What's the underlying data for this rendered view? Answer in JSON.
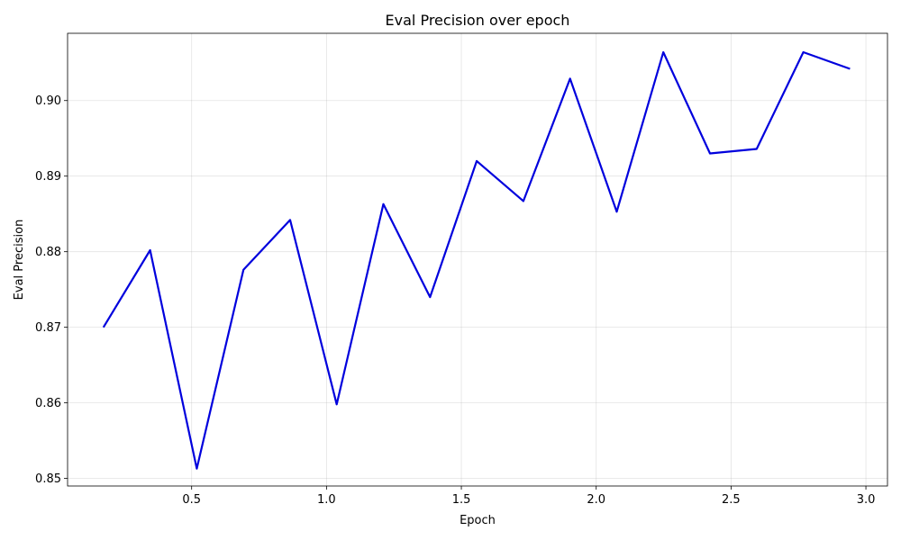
{
  "chart_data": {
    "type": "line",
    "title": "Eval Precision over epoch",
    "xlabel": "Epoch",
    "ylabel": "Eval Precision",
    "xlim": [
      0.04,
      3.08
    ],
    "ylim": [
      0.849,
      0.9089
    ],
    "xticks": [
      0.5,
      1.0,
      1.5,
      2.0,
      2.5,
      3.0
    ],
    "xtick_labels": [
      "0.5",
      "1.0",
      "1.5",
      "2.0",
      "2.5",
      "3.0"
    ],
    "yticks": [
      0.85,
      0.86,
      0.87,
      0.88,
      0.89,
      0.9
    ],
    "ytick_labels": [
      "0.85",
      "0.86",
      "0.87",
      "0.88",
      "0.89",
      "0.90"
    ],
    "grid": true,
    "series": [
      {
        "color": "#0000dd",
        "x": [
          0.173,
          0.346,
          0.519,
          0.692,
          0.865,
          1.038,
          1.211,
          1.384,
          1.557,
          1.73,
          1.903,
          2.076,
          2.249,
          2.422,
          2.595,
          2.768,
          2.941
        ],
        "y": [
          0.87,
          0.8802,
          0.8513,
          0.8776,
          0.8842,
          0.8598,
          0.8863,
          0.874,
          0.892,
          0.8867,
          0.9029,
          0.8853,
          0.9064,
          0.893,
          0.8936,
          0.9064,
          0.9042
        ]
      }
    ]
  }
}
